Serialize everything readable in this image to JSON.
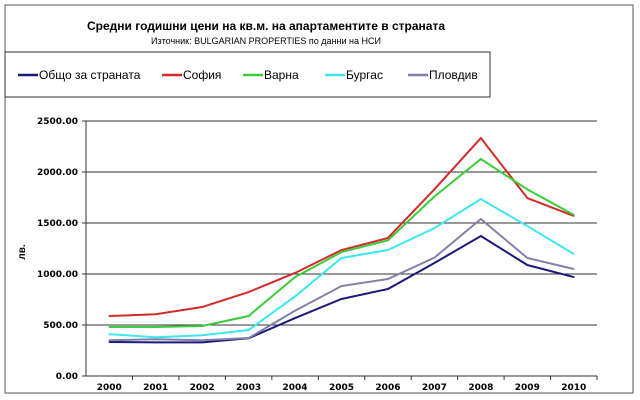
{
  "chart_data": {
    "type": "line",
    "title": "Средни годишни цени на кв.м. на апартаментите в страната",
    "subtitle": "Източник: BULGARIAN PROPERTIES по данни на НСИ",
    "xlabel": "",
    "ylabel": "лв.",
    "ylim": [
      0,
      2500
    ],
    "yticks": [
      "0.00",
      "500.00",
      "1000.00",
      "1500.00",
      "2000.00",
      "2500.00"
    ],
    "ytick_values": [
      0,
      500,
      1000,
      1500,
      2000,
      2500
    ],
    "grid": true,
    "legend": "top",
    "categories": [
      "2000",
      "2001",
      "2002",
      "2003",
      "2004",
      "2005",
      "2006",
      "2007",
      "2008",
      "2009",
      "2010"
    ],
    "series": [
      {
        "name": "Общо за страната",
        "color": "#1a1a7a",
        "values": [
          333,
          330,
          330,
          370,
          568,
          755,
          853,
          1108,
          1372,
          1088,
          970
        ]
      },
      {
        "name": "София",
        "color": "#d42a2a",
        "values": [
          588,
          605,
          676,
          823,
          1010,
          1235,
          1353,
          1830,
          2333,
          1745,
          1569
        ]
      },
      {
        "name": "Варна",
        "color": "#3ccc3c",
        "values": [
          480,
          480,
          490,
          588,
          970,
          1215,
          1330,
          1760,
          2127,
          1830,
          1580
        ]
      },
      {
        "name": "Бургас",
        "color": "#3ee6ee",
        "values": [
          410,
          380,
          400,
          451,
          780,
          1157,
          1235,
          1450,
          1735,
          1470,
          1196
        ]
      },
      {
        "name": "Пловдив",
        "color": "#8080a8",
        "values": [
          350,
          360,
          350,
          372,
          640,
          882,
          951,
          1160,
          1539,
          1157,
          1049
        ]
      }
    ]
  }
}
